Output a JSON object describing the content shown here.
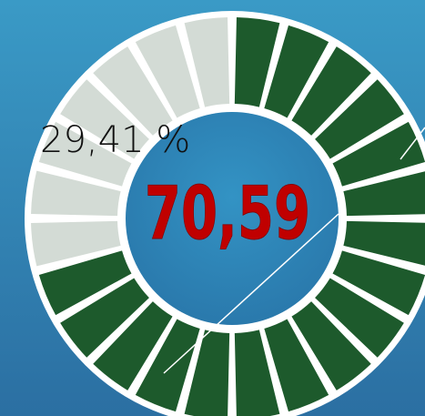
{
  "chart_data": {
    "type": "gauge",
    "values": [
      70.59,
      29.41
    ],
    "value_labels": [
      "70,59",
      "29,41 %"
    ],
    "colors": [
      "#1d5a2c",
      "#d3dbd5"
    ],
    "ylim": [
      0,
      100
    ]
  }
}
